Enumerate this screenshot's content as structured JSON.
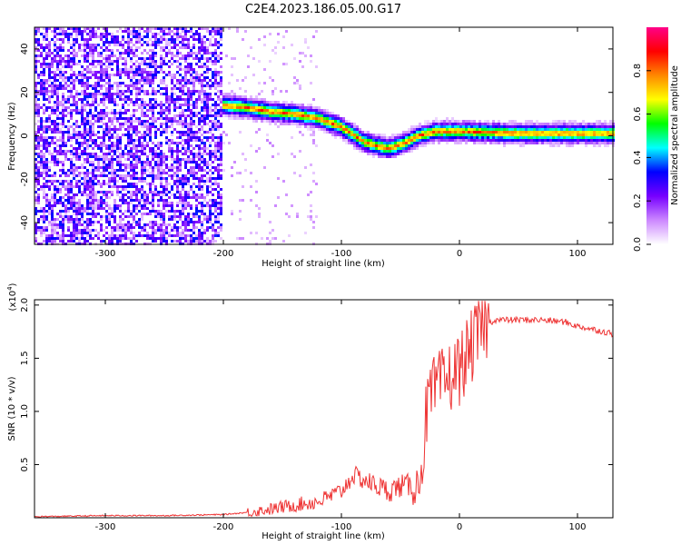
{
  "figure": {
    "title": "C2E4.2023.186.05.00.G17"
  },
  "chart_data": [
    {
      "type": "heatmap",
      "title": "C2E4.2023.186.05.00.G17",
      "xlabel": "Height of straight line (km)",
      "ylabel": "Frequency (Hz)",
      "xlim": [
        -360,
        130
      ],
      "ylim": [
        -50,
        50
      ],
      "xticks": [
        -300,
        -200,
        -100,
        0,
        100
      ],
      "yticks": [
        -40,
        -20,
        0,
        20,
        40
      ],
      "colorbar": {
        "label": "Normalized spectral amplitude",
        "range": [
          0,
          1
        ],
        "ticks": [
          "0.0",
          "0.2",
          "0.4",
          "0.6",
          "0.8"
        ],
        "colors": [
          "#ffffff",
          "#cc88ff",
          "#7700ff",
          "#0000ff",
          "#00ffff",
          "#00ff00",
          "#ffff00",
          "#ff8800",
          "#ff0000",
          "#ff0088"
        ]
      },
      "ridge": {
        "x": [
          -200,
          -180,
          -160,
          -140,
          -120,
          -100,
          -80,
          -60,
          -45,
          -35,
          -20,
          -10,
          0,
          50,
          100,
          130
        ],
        "y": [
          14,
          13,
          11,
          10,
          8,
          4,
          -3,
          -6,
          -3,
          0,
          2,
          2,
          2,
          1,
          1,
          1
        ],
        "peak_amplitude": 0.85
      },
      "noise_region": {
        "x_range": [
          -360,
          -200
        ],
        "amplitude": 0.3
      }
    },
    {
      "type": "line",
      "xlabel": "Height of straight line (km)",
      "ylabel": "SNR (10 * v/v)",
      "y_multiplier": "(x10",
      "y_multiplier_exp": "4",
      "y_multiplier_close": ")",
      "xlim": [
        -360,
        130
      ],
      "ylim": [
        0,
        2.05
      ],
      "xticks": [
        -300,
        -200,
        -100,
        0,
        100
      ],
      "yticks": [
        "0.5",
        "1.0",
        "1.5",
        "2.0"
      ],
      "line_color": "#ee3333",
      "series": [
        {
          "x": [
            -360,
            -300,
            -250,
            -200,
            -180,
            -160,
            -140,
            -120,
            -110,
            -100,
            -90,
            -80,
            -70,
            -60,
            -50,
            -40,
            -35,
            -30,
            -28,
            -25,
            -20,
            -10,
            0,
            10,
            20,
            30,
            50,
            70,
            90,
            100,
            110,
            130
          ],
          "y": [
            0.01,
            0.02,
            0.02,
            0.03,
            0.05,
            0.08,
            0.12,
            0.15,
            0.2,
            0.25,
            0.4,
            0.35,
            0.3,
            0.25,
            0.3,
            0.3,
            0.3,
            0.6,
            1.0,
            1.1,
            1.2,
            1.3,
            1.4,
            1.6,
            1.8,
            1.86,
            1.86,
            1.86,
            1.84,
            1.8,
            1.78,
            1.73
          ]
        }
      ]
    }
  ]
}
